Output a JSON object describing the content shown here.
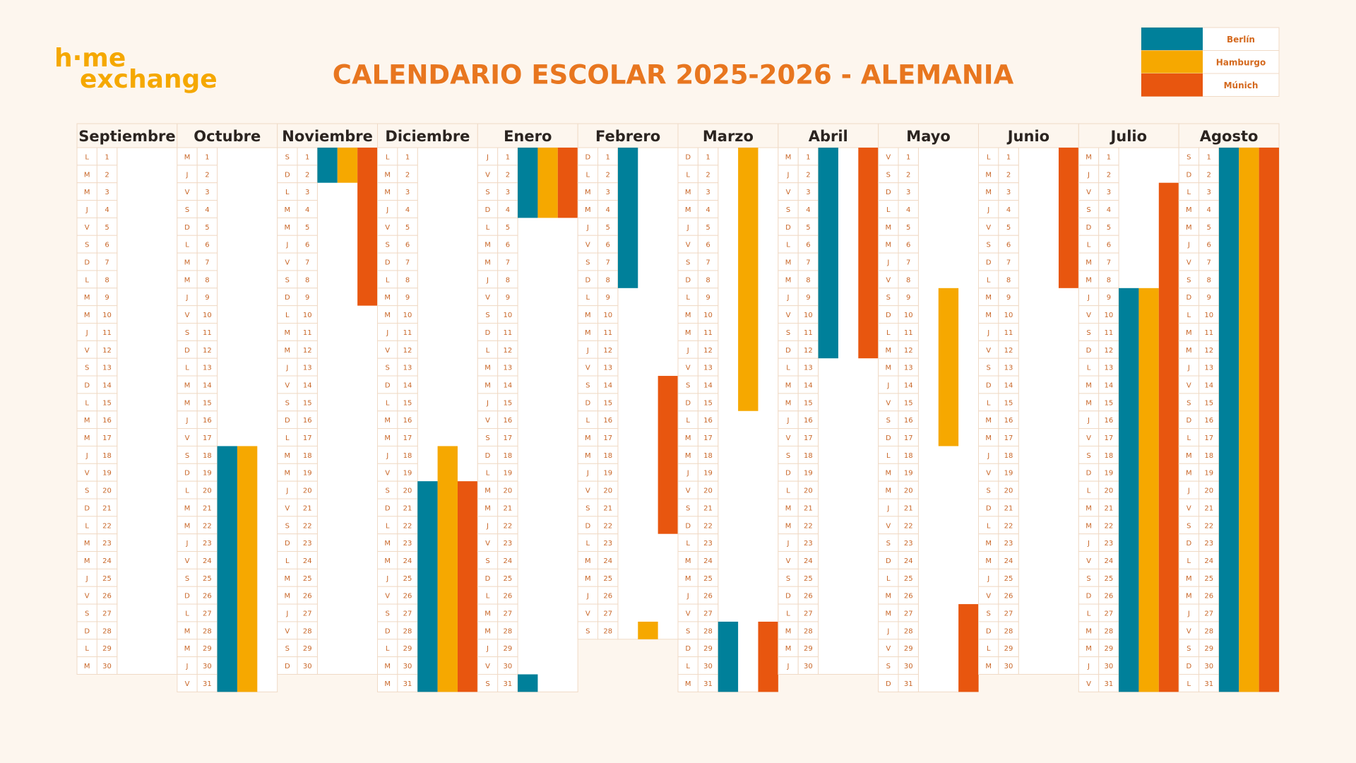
{
  "logo": {
    "line1": "h·me",
    "line2": "exchange"
  },
  "title": "CALENDARIO ESCOLAR 2025-2026 - ALEMANIA",
  "legend": [
    {
      "name": "Berlín",
      "color": "#00809a"
    },
    {
      "name": "Hamburgo",
      "color": "#f6a800"
    },
    {
      "name": "Múnich",
      "color": "#e8560f"
    }
  ],
  "months": [
    {
      "name": "Septiembre",
      "weekdays": [
        "L",
        "M",
        "M",
        "J",
        "V",
        "S",
        "D",
        "L",
        "M",
        "M",
        "J",
        "V",
        "S",
        "D",
        "L",
        "M",
        "M",
        "J",
        "V",
        "S",
        "D",
        "L",
        "M",
        "M",
        "J",
        "V",
        "S",
        "D",
        "L",
        "M"
      ],
      "days": [
        1,
        2,
        3,
        4,
        5,
        6,
        7,
        8,
        9,
        10,
        11,
        12,
        13,
        14,
        15,
        16,
        17,
        18,
        19,
        20,
        21,
        22,
        23,
        24,
        25,
        26,
        27,
        28,
        29,
        30
      ],
      "holidays": [
        [],
        [],
        []
      ]
    },
    {
      "name": "Octubre",
      "weekdays": [
        "M",
        "J",
        "V",
        "S",
        "D",
        "L",
        "M",
        "M",
        "J",
        "V",
        "S",
        "D",
        "L",
        "M",
        "M",
        "J",
        "V",
        "S",
        "D",
        "L",
        "M",
        "M",
        "J",
        "V",
        "S",
        "D",
        "L",
        "M",
        "M",
        "J",
        "V"
      ],
      "days": [
        1,
        2,
        3,
        4,
        5,
        6,
        7,
        8,
        9,
        10,
        11,
        12,
        13,
        14,
        15,
        16,
        17,
        18,
        19,
        20,
        21,
        22,
        23,
        24,
        25,
        26,
        27,
        28,
        29,
        30,
        31
      ],
      "holidays": [
        [
          [
            18,
            31
          ]
        ],
        [
          [
            18,
            31
          ]
        ],
        []
      ]
    },
    {
      "name": "Noviembre",
      "weekdays": [
        "S",
        "D",
        "L",
        "M",
        "M",
        "J",
        "V",
        "S",
        "D",
        "L",
        "M",
        "M",
        "J",
        "V",
        "S",
        "D",
        "L",
        "M",
        "M",
        "J",
        "V",
        "S",
        "D",
        "L",
        "M",
        "M",
        "J",
        "V",
        "S",
        "D"
      ],
      "days": [
        1,
        2,
        3,
        4,
        5,
        6,
        7,
        8,
        9,
        10,
        11,
        12,
        13,
        14,
        15,
        16,
        17,
        18,
        19,
        20,
        21,
        22,
        23,
        24,
        25,
        26,
        27,
        28,
        29,
        30
      ],
      "holidays": [
        [
          [
            1,
            2
          ]
        ],
        [
          [
            1,
            2
          ]
        ],
        [
          [
            1,
            9
          ]
        ]
      ]
    },
    {
      "name": "Diciembre",
      "weekdays": [
        "L",
        "M",
        "M",
        "J",
        "V",
        "S",
        "D",
        "L",
        "M",
        "M",
        "J",
        "V",
        "S",
        "D",
        "L",
        "M",
        "M",
        "J",
        "V",
        "S",
        "D",
        "L",
        "M",
        "M",
        "J",
        "V",
        "S",
        "D",
        "L",
        "M",
        "M"
      ],
      "days": [
        1,
        2,
        3,
        4,
        5,
        6,
        7,
        8,
        9,
        10,
        11,
        12,
        13,
        14,
        15,
        16,
        17,
        18,
        19,
        20,
        21,
        22,
        23,
        24,
        25,
        26,
        27,
        28,
        29,
        30,
        31
      ],
      "holidays": [
        [
          [
            20,
            31
          ]
        ],
        [
          [
            18,
            31
          ]
        ],
        [
          [
            20,
            31
          ]
        ]
      ]
    },
    {
      "name": "Enero",
      "weekdays": [
        "J",
        "V",
        "S",
        "D",
        "L",
        "M",
        "M",
        "J",
        "V",
        "S",
        "D",
        "L",
        "M",
        "M",
        "J",
        "V",
        "S",
        "D",
        "L",
        "M",
        "M",
        "J",
        "V",
        "S",
        "D",
        "L",
        "M",
        "M",
        "J",
        "V",
        "S"
      ],
      "days": [
        1,
        2,
        3,
        4,
        5,
        6,
        7,
        8,
        9,
        10,
        11,
        12,
        13,
        14,
        15,
        16,
        17,
        18,
        19,
        20,
        21,
        22,
        23,
        24,
        25,
        26,
        27,
        28,
        29,
        30,
        31
      ],
      "holidays": [
        [
          [
            1,
            4
          ],
          [
            31,
            31
          ]
        ],
        [
          [
            1,
            4
          ]
        ],
        [
          [
            1,
            4
          ]
        ]
      ]
    },
    {
      "name": "Febrero",
      "weekdays": [
        "D",
        "L",
        "M",
        "M",
        "J",
        "V",
        "S",
        "D",
        "L",
        "M",
        "M",
        "J",
        "V",
        "S",
        "D",
        "L",
        "M",
        "M",
        "J",
        "V",
        "S",
        "D",
        "L",
        "M",
        "M",
        "J",
        "V",
        "S"
      ],
      "days": [
        1,
        2,
        3,
        4,
        5,
        6,
        7,
        8,
        9,
        10,
        11,
        12,
        13,
        14,
        15,
        16,
        17,
        18,
        19,
        20,
        21,
        22,
        23,
        24,
        25,
        26,
        27,
        28
      ],
      "holidays": [
        [
          [
            1,
            8
          ]
        ],
        [
          [
            28,
            28
          ]
        ],
        [
          [
            14,
            22
          ]
        ]
      ]
    },
    {
      "name": "Marzo",
      "weekdays": [
        "D",
        "L",
        "M",
        "M",
        "J",
        "V",
        "S",
        "D",
        "L",
        "M",
        "M",
        "J",
        "V",
        "S",
        "D",
        "L",
        "M",
        "M",
        "J",
        "V",
        "S",
        "D",
        "L",
        "M",
        "M",
        "J",
        "V",
        "S",
        "D",
        "L",
        "M"
      ],
      "days": [
        1,
        2,
        3,
        4,
        5,
        6,
        7,
        8,
        9,
        10,
        11,
        12,
        13,
        14,
        15,
        16,
        17,
        18,
        19,
        20,
        21,
        22,
        23,
        24,
        25,
        26,
        27,
        28,
        29,
        30,
        31
      ],
      "holidays": [
        [
          [
            28,
            31
          ]
        ],
        [
          [
            1,
            15
          ]
        ],
        [
          [
            28,
            31
          ]
        ]
      ]
    },
    {
      "name": "Abril",
      "weekdays": [
        "M",
        "J",
        "V",
        "S",
        "D",
        "L",
        "M",
        "M",
        "J",
        "V",
        "S",
        "D",
        "L",
        "M",
        "M",
        "J",
        "V",
        "S",
        "D",
        "L",
        "M",
        "M",
        "J",
        "V",
        "S",
        "D",
        "L",
        "M",
        "M",
        "J"
      ],
      "days": [
        1,
        2,
        3,
        4,
        5,
        6,
        7,
        8,
        9,
        10,
        11,
        12,
        13,
        14,
        15,
        16,
        17,
        18,
        19,
        20,
        21,
        22,
        23,
        24,
        25,
        26,
        27,
        28,
        29,
        30
      ],
      "holidays": [
        [
          [
            1,
            12
          ]
        ],
        [],
        [
          [
            1,
            12
          ]
        ]
      ]
    },
    {
      "name": "Mayo",
      "weekdays": [
        "V",
        "S",
        "D",
        "L",
        "M",
        "M",
        "J",
        "V",
        "S",
        "D",
        "L",
        "M",
        "M",
        "J",
        "V",
        "S",
        "D",
        "L",
        "M",
        "M",
        "J",
        "V",
        "S",
        "D",
        "L",
        "M",
        "M",
        "J",
        "V",
        "S",
        "D"
      ],
      "days": [
        1,
        2,
        3,
        4,
        5,
        6,
        7,
        8,
        9,
        10,
        11,
        12,
        13,
        14,
        15,
        16,
        17,
        18,
        19,
        20,
        21,
        22,
        23,
        24,
        25,
        26,
        27,
        28,
        29,
        30,
        31
      ],
      "holidays": [
        [],
        [
          [
            9,
            17
          ]
        ],
        [
          [
            27,
            31
          ]
        ]
      ]
    },
    {
      "name": "Junio",
      "weekdays": [
        "L",
        "M",
        "M",
        "J",
        "V",
        "S",
        "D",
        "L",
        "M",
        "M",
        "J",
        "V",
        "S",
        "D",
        "L",
        "M",
        "M",
        "J",
        "V",
        "S",
        "D",
        "L",
        "M",
        "M",
        "J",
        "V",
        "S",
        "D",
        "L",
        "M"
      ],
      "days": [
        1,
        2,
        3,
        4,
        5,
        6,
        7,
        8,
        9,
        10,
        11,
        12,
        13,
        14,
        15,
        16,
        17,
        18,
        19,
        20,
        21,
        22,
        23,
        24,
        25,
        26,
        27,
        28,
        29,
        30
      ],
      "holidays": [
        [],
        [],
        [
          [
            1,
            8
          ]
        ]
      ]
    },
    {
      "name": "Julio",
      "weekdays": [
        "M",
        "J",
        "V",
        "S",
        "D",
        "L",
        "M",
        "M",
        "J",
        "V",
        "S",
        "D",
        "L",
        "M",
        "M",
        "J",
        "V",
        "S",
        "D",
        "L",
        "M",
        "M",
        "J",
        "V",
        "S",
        "D",
        "L",
        "M",
        "M",
        "J",
        "V"
      ],
      "days": [
        1,
        2,
        3,
        4,
        5,
        6,
        7,
        8,
        9,
        10,
        11,
        12,
        13,
        14,
        15,
        16,
        17,
        18,
        19,
        20,
        21,
        22,
        23,
        24,
        25,
        26,
        27,
        28,
        29,
        30,
        31
      ],
      "holidays": [
        [
          [
            9,
            31
          ]
        ],
        [
          [
            9,
            31
          ]
        ],
        [
          [
            3,
            31
          ]
        ]
      ]
    },
    {
      "name": "Agosto",
      "weekdays": [
        "S",
        "D",
        "L",
        "M",
        "M",
        "J",
        "V",
        "S",
        "D",
        "L",
        "M",
        "M",
        "J",
        "V",
        "S",
        "D",
        "L",
        "M",
        "M",
        "J",
        "V",
        "S",
        "D",
        "L",
        "M",
        "M",
        "J",
        "V",
        "S",
        "D",
        "L"
      ],
      "days": [
        1,
        2,
        3,
        4,
        5,
        6,
        7,
        8,
        9,
        10,
        11,
        12,
        13,
        14,
        15,
        16,
        17,
        18,
        19,
        20,
        21,
        22,
        23,
        24,
        25,
        26,
        27,
        28,
        29,
        30,
        31
      ],
      "holidays": [
        [
          [
            1,
            31
          ]
        ],
        [
          [
            1,
            31
          ]
        ],
        [
          [
            1,
            31
          ]
        ]
      ]
    }
  ]
}
